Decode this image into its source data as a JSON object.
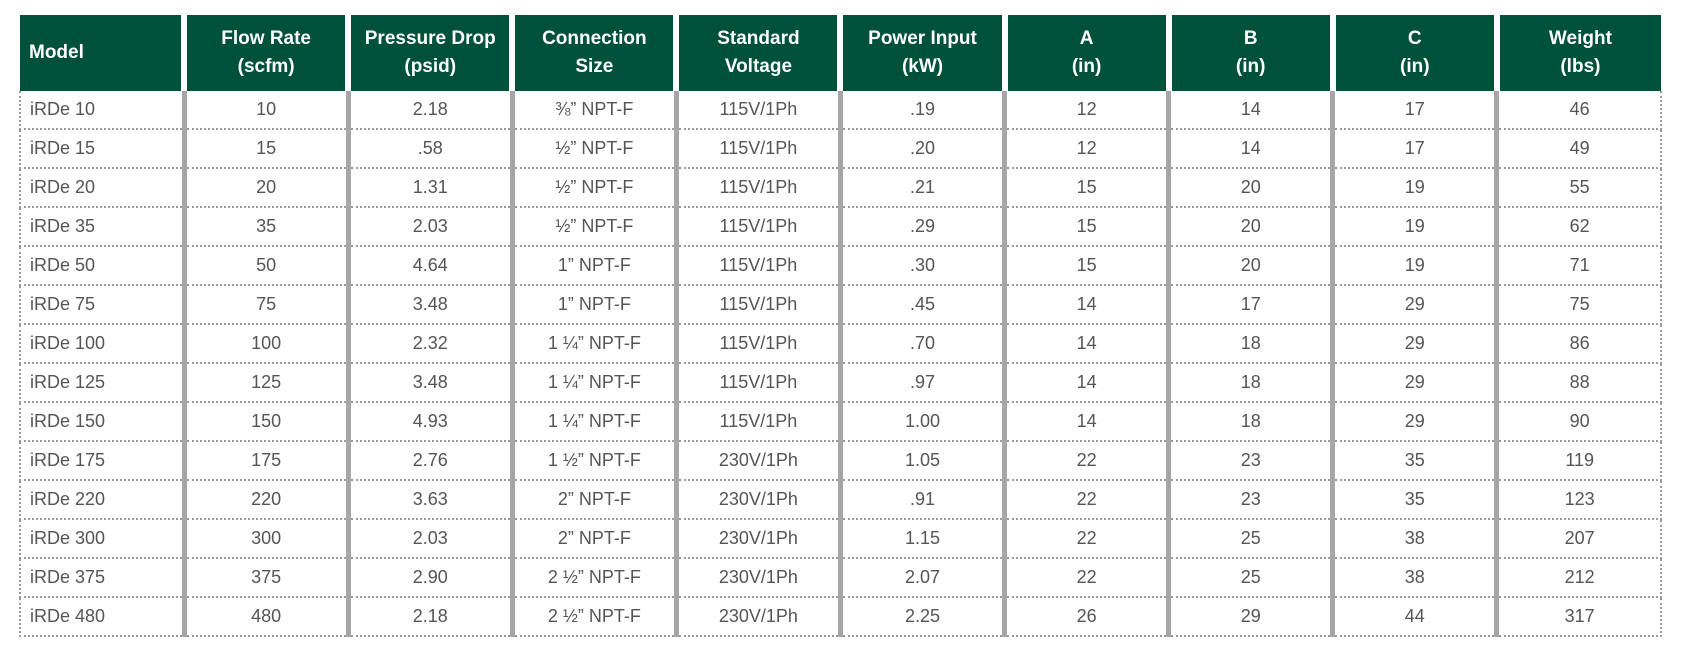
{
  "table": {
    "header": [
      [
        "Model"
      ],
      [
        "Flow Rate",
        "(scfm)"
      ],
      [
        "Pressure Drop",
        "(psid)"
      ],
      [
        "Connection",
        "Size"
      ],
      [
        "Standard",
        "Voltage"
      ],
      [
        "Power Input",
        "(kW)"
      ],
      [
        "A",
        "(in)"
      ],
      [
        "B",
        "(in)"
      ],
      [
        "C",
        "(in)"
      ],
      [
        "Weight",
        "(lbs)"
      ]
    ],
    "rows": [
      [
        "iRDe 10",
        "10",
        "2.18",
        "⅜” NPT-F",
        "115V/1Ph",
        ".19",
        "12",
        "14",
        "17",
        "46"
      ],
      [
        "iRDe 15",
        "15",
        ".58",
        "½” NPT-F",
        "115V/1Ph",
        ".20",
        "12",
        "14",
        "17",
        "49"
      ],
      [
        "iRDe 20",
        "20",
        "1.31",
        "½” NPT-F",
        "115V/1Ph",
        ".21",
        "15",
        "20",
        "19",
        "55"
      ],
      [
        "iRDe 35",
        "35",
        "2.03",
        "½” NPT-F",
        "115V/1Ph",
        ".29",
        "15",
        "20",
        "19",
        "62"
      ],
      [
        "iRDe 50",
        "50",
        "4.64",
        "1” NPT-F",
        "115V/1Ph",
        ".30",
        "15",
        "20",
        "19",
        "71"
      ],
      [
        "iRDe 75",
        "75",
        "3.48",
        "1” NPT-F",
        "115V/1Ph",
        ".45",
        "14",
        "17",
        "29",
        "75"
      ],
      [
        "iRDe 100",
        "100",
        "2.32",
        "1 ¼” NPT-F",
        "115V/1Ph",
        ".70",
        "14",
        "18",
        "29",
        "86"
      ],
      [
        "iRDe 125",
        "125",
        "3.48",
        "1 ¼” NPT-F",
        "115V/1Ph",
        ".97",
        "14",
        "18",
        "29",
        "88"
      ],
      [
        "iRDe 150",
        "150",
        "4.93",
        "1 ¼” NPT-F",
        "115V/1Ph",
        "1.00",
        "14",
        "18",
        "29",
        "90"
      ],
      [
        "iRDe 175",
        "175",
        "2.76",
        "1 ½” NPT-F",
        "230V/1Ph",
        "1.05",
        "22",
        "23",
        "35",
        "119"
      ],
      [
        "iRDe 220",
        "220",
        "3.63",
        "2” NPT-F",
        "230V/1Ph",
        ".91",
        "22",
        "23",
        "35",
        "123"
      ],
      [
        "iRDe 300",
        "300",
        "2.03",
        "2” NPT-F",
        "230V/1Ph",
        "1.15",
        "22",
        "25",
        "38",
        "207"
      ],
      [
        "iRDe 375",
        "375",
        "2.90",
        "2 ½” NPT-F",
        "230V/1Ph",
        "2.07",
        "22",
        "25",
        "38",
        "212"
      ],
      [
        "iRDe 480",
        "480",
        "2.18",
        "2 ½” NPT-F",
        "230V/1Ph",
        "2.25",
        "26",
        "29",
        "44",
        "317"
      ]
    ]
  }
}
